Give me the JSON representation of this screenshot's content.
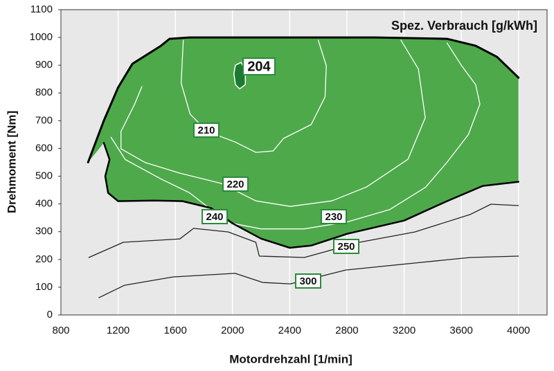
{
  "chart_data": {
    "type": "line",
    "title": "Spez. Verbrauch [g/kWh]",
    "x_label": "Motordrehzahl [1/min]",
    "y_label": "Drehmoment [Nm]",
    "xlim": [
      800,
      4200
    ],
    "ylim": [
      0,
      1100
    ],
    "xticks": [
      800,
      1200,
      1600,
      2000,
      2400,
      2800,
      3200,
      3600,
      4000
    ],
    "yticks": [
      0,
      100,
      200,
      300,
      400,
      500,
      600,
      700,
      800,
      900,
      1000,
      1100
    ],
    "grid": "x",
    "region_color": "#4ea94b",
    "series": [
      {
        "color": "#000000",
        "line_width": 3,
        "x": [
          990,
          1100,
          1200,
          1300,
          1500,
          1560,
          1700,
          2000,
          3000,
          3500,
          3700,
          3850,
          4000
        ],
        "y": [
          550,
          700,
          820,
          905,
          970,
          995,
          1000,
          1000,
          1000,
          995,
          970,
          930,
          855
        ]
      },
      {
        "name": "240",
        "color": "#000000",
        "line_width": 2.5,
        "x": [
          1100,
          1140,
          1110,
          1130,
          1200,
          1450,
          1650,
          1850,
          2000,
          2200,
          2400,
          2550,
          2800,
          3200,
          3500,
          3750,
          4000
        ],
        "y": [
          620,
          560,
          500,
          440,
          410,
          412,
          410,
          385,
          330,
          275,
          242,
          250,
          292,
          340,
          410,
          465,
          480
        ]
      },
      {
        "name": "204",
        "color": "#1b7a30",
        "closed": true,
        "x": [
          2020,
          2060,
          2090,
          2090,
          2050,
          2020,
          2010
        ],
        "y": [
          900,
          910,
          880,
          830,
          815,
          830,
          870
        ]
      },
      {
        "name": "210",
        "color": "#ffffff",
        "line_width": 1.3,
        "x": [
          1656,
          1641,
          1704,
          1825,
          2018,
          2163,
          2284,
          2357,
          2550,
          2647,
          2656,
          2600
        ],
        "y": [
          990,
          835,
          723,
          661,
          623,
          586,
          591,
          636,
          686,
          786,
          898,
          990
        ]
      },
      {
        "name": "220",
        "color": "#ffffff",
        "line_width": 1.3,
        "x": [
          1366,
          1317,
          1220,
          1220,
          1390,
          1631,
          1921,
          2163,
          2405,
          2695,
          2937,
          3227,
          3348,
          3300,
          3178
        ],
        "y": [
          823,
          761,
          661,
          599,
          549,
          511,
          474,
          411,
          391,
          411,
          461,
          561,
          711,
          886,
          990
        ]
      },
      {
        "name": "230",
        "color": "#ffffff",
        "line_width": 1.3,
        "x": [
          1150,
          1250,
          1500,
          1700,
          1850,
          2000,
          2200,
          2500,
          2800,
          3100,
          3350,
          3500,
          3650,
          3730,
          3700,
          3600,
          3500
        ],
        "y": [
          640,
          560,
          490,
          440,
          380,
          330,
          310,
          310,
          335,
          380,
          460,
          550,
          650,
          760,
          830,
          900,
          980
        ]
      },
      {
        "name": "250",
        "color": "#222222",
        "line_width": 1.3,
        "x": [
          995,
          1237,
          1631,
          1728,
          1970,
          2163,
          2187,
          2502,
          2889,
          3275,
          3662,
          3807,
          4000
        ],
        "y": [
          207,
          262,
          274,
          312,
          299,
          262,
          212,
          207,
          262,
          299,
          362,
          399,
          394
        ]
      },
      {
        "name": "300",
        "color": "#222222",
        "line_width": 1.3,
        "x": [
          1066,
          1245,
          1583,
          2018,
          2212,
          2405,
          2792,
          3275,
          3662,
          4000
        ],
        "y": [
          62,
          107,
          137,
          150,
          117,
          112,
          162,
          187,
          207,
          212
        ]
      }
    ]
  }
}
